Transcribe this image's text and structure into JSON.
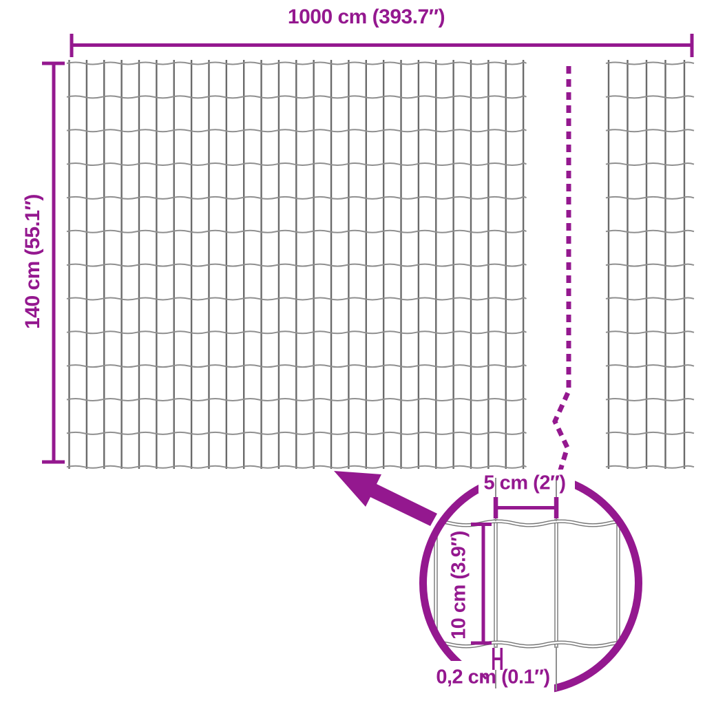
{
  "colors": {
    "accent": "#94188F",
    "wire_dark": "#6a6a6a",
    "wire_light": "#8f8f8f",
    "wire_detail": "#757575"
  },
  "labels": {
    "total_width": "1000 cm (393.7″)",
    "total_height": "140 cm (55.1″)",
    "mesh_cell_width": "5 cm (2″)",
    "mesh_cell_height": "10 cm (3.9″)",
    "wire_thickness": "0,2 cm (0.1″)"
  },
  "fence": {
    "rows": 12,
    "main_section_columns": 26,
    "right_section_wires": 5
  }
}
